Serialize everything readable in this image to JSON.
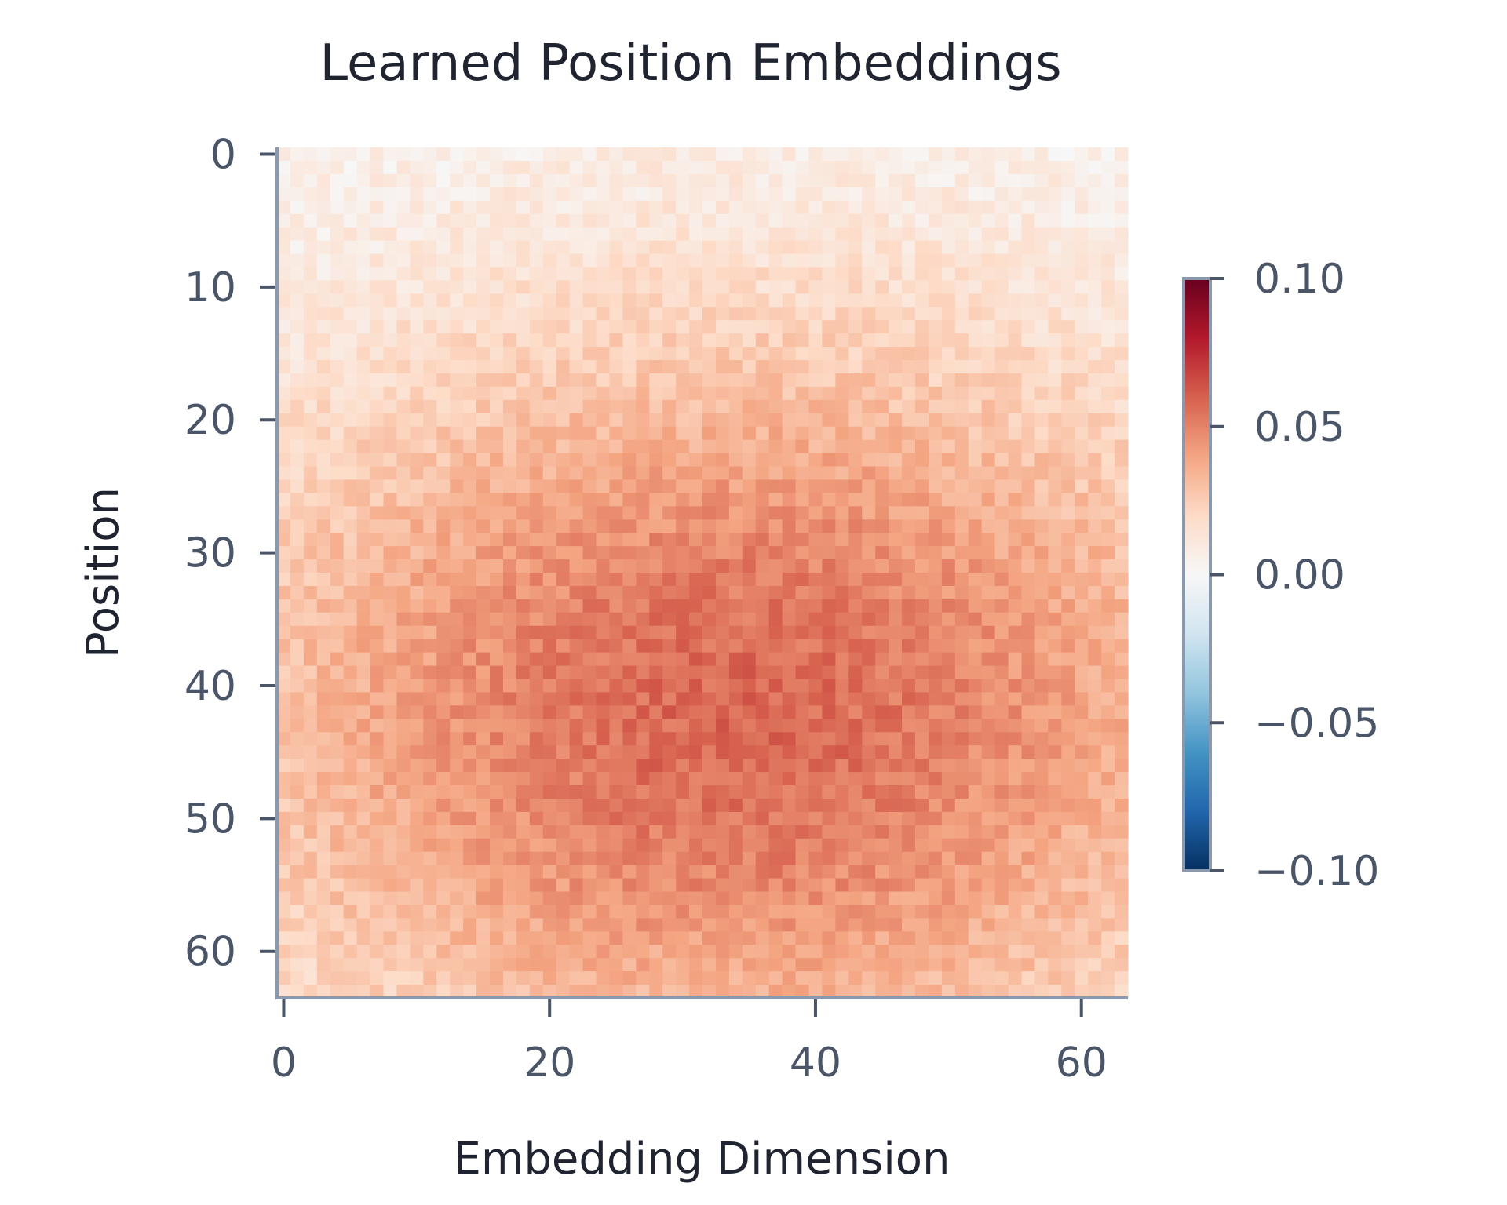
{
  "chart_data": {
    "type": "heatmap",
    "title": "Learned Position Embeddings",
    "xlabel": "Embedding Dimension",
    "ylabel": "Position",
    "rows": 64,
    "cols": 64,
    "x_ticks": [
      0,
      20,
      40,
      60
    ],
    "y_ticks": [
      0,
      10,
      20,
      30,
      40,
      50,
      60
    ],
    "colormap": "RdBu_r",
    "vmin": -0.1,
    "vmax": 0.1,
    "colorbar": {
      "ticks": [
        0.1,
        0.05,
        0.0,
        -0.05,
        -0.1
      ],
      "tick_labels": [
        "0.10",
        "0.05",
        "0.00",
        "−0.05",
        "−0.10"
      ]
    },
    "value_pattern": {
      "min_value": 0.003,
      "peak_value": 0.058,
      "peak_position": 42,
      "peak_dimension": 34
    },
    "grid": false
  },
  "colors": {
    "text": "#1f2430",
    "tick_text": "#4a5568",
    "spine": "#8a99ad"
  }
}
